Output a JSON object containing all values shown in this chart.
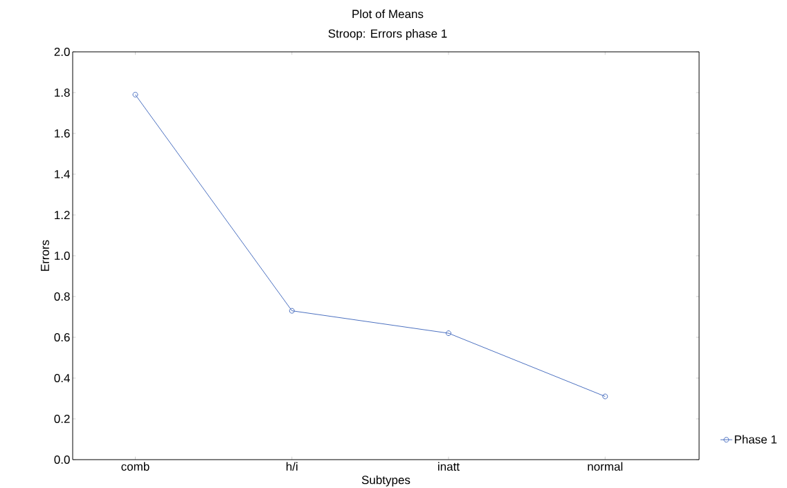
{
  "chart_data": {
    "type": "line",
    "title": "Plot of Means",
    "subtitle": "Stroop: Errors phase 1",
    "xlabel": "Subtypes",
    "ylabel": "Errors",
    "categories": [
      "comb",
      "h/i",
      "inatt",
      "normal"
    ],
    "series": [
      {
        "name": "Phase 1",
        "color": "#4a6fc0",
        "values": [
          1.79,
          0.73,
          0.62,
          0.31
        ]
      }
    ],
    "ylim": [
      0,
      2.0
    ],
    "yticks": [
      {
        "value": 0,
        "label": "0.0"
      },
      {
        "value": 0.2,
        "label": "0.2"
      },
      {
        "value": 0.4,
        "label": "0.4"
      },
      {
        "value": 0.6,
        "label": "0.6"
      },
      {
        "value": 0.8,
        "label": "0.8"
      },
      {
        "value": 1.0,
        "label": "1.0"
      },
      {
        "value": 1.2,
        "label": "1.2"
      },
      {
        "value": 1.4,
        "label": "1.4"
      },
      {
        "value": 1.6,
        "label": "1.6"
      },
      {
        "value": 1.8,
        "label": "1.8"
      },
      {
        "value": 2.0,
        "label": "2.0"
      }
    ],
    "marker": "circle",
    "line_style": "solid",
    "legend": "bottom right",
    "grid": false
  }
}
